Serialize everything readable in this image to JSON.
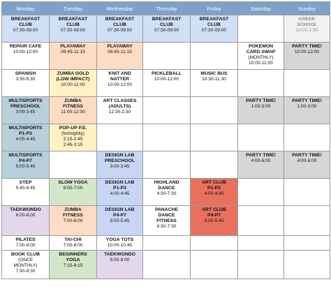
{
  "days": [
    "Monday",
    "Tuesday",
    "Wednesday",
    "Thursday",
    "Friday",
    "Saturday",
    "Sunday"
  ],
  "rows": [
    {
      "cells": [
        {
          "bg": "bg-blue",
          "lines": [
            {
              "b": true,
              "x": "BREAKFAST"
            },
            {
              "b": true,
              "x": "CLUB"
            },
            {
              "b": false,
              "x": "07:30-09:00"
            }
          ]
        },
        {
          "bg": "bg-blue",
          "lines": [
            {
              "b": true,
              "x": "BREAKFAST"
            },
            {
              "b": true,
              "x": "CLUB"
            },
            {
              "b": false,
              "x": "07:30-09:00"
            }
          ]
        },
        {
          "bg": "bg-blue",
          "lines": [
            {
              "b": true,
              "x": "BREAKFAST"
            },
            {
              "b": true,
              "x": "CLUB"
            },
            {
              "b": false,
              "x": "07:30-09:00"
            }
          ]
        },
        {
          "bg": "bg-blue",
          "lines": [
            {
              "b": true,
              "x": "BREAKFAST"
            },
            {
              "b": true,
              "x": "CLUB"
            },
            {
              "b": false,
              "x": "07:30-09:00"
            }
          ]
        },
        {
          "bg": "bg-blue",
          "lines": [
            {
              "b": true,
              "x": "BREAKFAST"
            },
            {
              "b": true,
              "x": "CLUB"
            },
            {
              "b": false,
              "x": "07:30-09:00"
            }
          ]
        },
        {
          "bg": "bg-white",
          "lines": []
        },
        {
          "bg": "bg-pale-grey",
          "muted": true,
          "lines": [
            {
              "b": true,
              "x": "GREEK"
            },
            {
              "b": true,
              "x": "SCHOOL"
            },
            {
              "b": false,
              "x": "10:00-1:30"
            }
          ]
        }
      ]
    },
    {
      "cells": [
        {
          "bg": "bg-white",
          "lines": [
            {
              "b": true,
              "x": "REPAIR CAFE"
            },
            {
              "b": false,
              "x": "10:00-12:00"
            }
          ]
        },
        {
          "bg": "bg-peach",
          "lines": [
            {
              "b": true,
              "x": "PLAYAWAY"
            },
            {
              "b": false,
              "x": "09:45-11:15"
            }
          ]
        },
        {
          "bg": "bg-peach",
          "lines": [
            {
              "b": true,
              "x": "PLAYAWAY"
            },
            {
              "b": false,
              "x": "09:45-11:15"
            }
          ]
        },
        {
          "bg": "bg-white",
          "lines": []
        },
        {
          "bg": "bg-white",
          "lines": []
        },
        {
          "bg": "bg-white",
          "lines": [
            {
              "b": true,
              "x": "POKEMON"
            },
            {
              "b": true,
              "x": "CARD SWAP"
            },
            {
              "b": false,
              "x": "(MONTHLY)"
            },
            {
              "b": false,
              "x": "10:00-11:00"
            }
          ]
        },
        {
          "bg": "bg-grey",
          "lines": [
            {
              "b": true,
              "x": "PARTY TIME!"
            },
            {
              "b": false,
              "x": "10:00-12:00"
            }
          ]
        }
      ]
    },
    {
      "cells": [
        {
          "bg": "bg-white",
          "lines": [
            {
              "b": true,
              "x": "SPANISH"
            },
            {
              "b": false,
              "x": "3:30-5:30"
            }
          ]
        },
        {
          "bg": "bg-yellow",
          "lines": [
            {
              "b": true,
              "x": "ZUMBA GOLD"
            },
            {
              "b": true,
              "x": "(LOW IMPACT)"
            },
            {
              "b": false,
              "x": "10:00-11:00"
            }
          ]
        },
        {
          "bg": "bg-white",
          "lines": [
            {
              "b": true,
              "x": "KNIT AND"
            },
            {
              "b": true,
              "x": "NATTER"
            },
            {
              "b": false,
              "x": "10:00-12:00"
            }
          ]
        },
        {
          "bg": "bg-white",
          "lines": [
            {
              "b": true,
              "x": "PICKLEBALL"
            },
            {
              "b": false,
              "x": "10:00-12:00"
            }
          ]
        },
        {
          "bg": "bg-white",
          "lines": [
            {
              "b": true,
              "x": "MUSIC BUS"
            },
            {
              "b": false,
              "x": "10:30-11:30"
            }
          ]
        },
        {
          "bg": "bg-white",
          "lines": []
        },
        {
          "bg": "bg-white",
          "lines": []
        }
      ]
    },
    {
      "cells": [
        {
          "bg": "bg-slate",
          "lines": [
            {
              "b": true,
              "x": "MULTISPORTS"
            },
            {
              "b": true,
              "x": "PRESCHOOL"
            },
            {
              "b": false,
              "x": "3:00-3:45"
            }
          ]
        },
        {
          "bg": "bg-peach",
          "lines": [
            {
              "b": true,
              "x": "ZUMBA"
            },
            {
              "b": true,
              "x": "FITNESS"
            },
            {
              "b": false,
              "x": "11:00-12:00"
            }
          ]
        },
        {
          "bg": "bg-white",
          "lines": [
            {
              "b": true,
              "x": "ART CLASSES"
            },
            {
              "b": true,
              "x": "(ADULTS)"
            },
            {
              "b": false,
              "x": "12:30-2:30"
            }
          ]
        },
        {
          "bg": "bg-white",
          "lines": []
        },
        {
          "bg": "bg-white",
          "lines": []
        },
        {
          "bg": "bg-grey",
          "lines": [
            {
              "b": true,
              "x": "PARTY TIME!"
            },
            {
              "b": false,
              "x": "1:00-3:00"
            }
          ]
        },
        {
          "bg": "bg-grey",
          "lines": [
            {
              "b": true,
              "x": "PARTY TIME!"
            },
            {
              "b": false,
              "x": "1:00-3:00"
            }
          ]
        }
      ]
    },
    {
      "cells": [
        {
          "bg": "bg-slate",
          "lines": [
            {
              "b": true,
              "x": "MULTISPORTS"
            },
            {
              "b": true,
              "x": "P1-P3"
            },
            {
              "b": false,
              "x": "4:00-4:45"
            }
          ]
        },
        {
          "bg": "bg-yellow",
          "lines": [
            {
              "b": true,
              "x": "POP-UP P.E."
            },
            {
              "b": false,
              "x": "(fortnightly)"
            },
            {
              "b": false,
              "x": "2:15-2:45"
            },
            {
              "b": false,
              "x": "2:45-3:15"
            }
          ]
        },
        {
          "bg": "bg-white",
          "lines": []
        },
        {
          "bg": "bg-white",
          "lines": []
        },
        {
          "bg": "bg-white",
          "lines": []
        },
        {
          "bg": "bg-white",
          "lines": []
        },
        {
          "bg": "bg-white",
          "lines": []
        }
      ]
    },
    {
      "cells": [
        {
          "bg": "bg-slate",
          "lines": [
            {
              "b": true,
              "x": "MULTISPORTS"
            },
            {
              "b": true,
              "x": "P4-P7"
            },
            {
              "b": false,
              "x": "5:00-5:45"
            }
          ]
        },
        {
          "bg": "bg-white",
          "lines": []
        },
        {
          "bg": "bg-periwinkle",
          "lines": [
            {
              "b": true,
              "x": "DESIGN LAB"
            },
            {
              "b": true,
              "x": "PRESCHOOL"
            },
            {
              "b": false,
              "x": "3:00-3:45"
            }
          ]
        },
        {
          "bg": "bg-white",
          "lines": []
        },
        {
          "bg": "bg-white",
          "lines": []
        },
        {
          "bg": "bg-grey",
          "lines": [
            {
              "b": true,
              "x": "PARTY TIME!"
            },
            {
              "b": false,
              "x": "4:00-6:00"
            }
          ]
        },
        {
          "bg": "bg-grey",
          "lines": [
            {
              "b": true,
              "x": "PARTY TIME!"
            },
            {
              "b": false,
              "x": "4:00-6:00"
            }
          ]
        }
      ]
    },
    {
      "cells": [
        {
          "bg": "bg-white",
          "lines": [
            {
              "b": true,
              "x": "STEP"
            },
            {
              "b": false,
              "x": "5:45-6:45"
            }
          ]
        },
        {
          "bg": "bg-green",
          "lines": [
            {
              "b": true,
              "x": "SLOW YOGA"
            },
            {
              "b": false,
              "x": "6:00-7:00"
            }
          ]
        },
        {
          "bg": "bg-periwinkle",
          "lines": [
            {
              "b": true,
              "x": "DESIGN LAB"
            },
            {
              "b": true,
              "x": "P1-P3"
            },
            {
              "b": false,
              "x": "4:00-4:45"
            }
          ]
        },
        {
          "bg": "bg-white",
          "lines": [
            {
              "b": true,
              "x": "HIGHLAND"
            },
            {
              "b": true,
              "x": "DANCE"
            },
            {
              "b": false,
              "x": "4:30-7:30"
            }
          ]
        },
        {
          "bg": "bg-red",
          "lines": [
            {
              "b": true,
              "x": "ART CLUB"
            },
            {
              "b": true,
              "x": "P1-P3"
            },
            {
              "b": false,
              "x": "4:00-4:45"
            }
          ]
        },
        {
          "bg": "bg-white",
          "lines": []
        },
        {
          "bg": "bg-white",
          "lines": []
        }
      ]
    },
    {
      "cells": [
        {
          "bg": "bg-purple",
          "lines": [
            {
              "b": true,
              "x": "TAEKWONDO"
            },
            {
              "b": false,
              "x": "6:00-8:00"
            }
          ]
        },
        {
          "bg": "bg-peach",
          "lines": [
            {
              "b": true,
              "x": "ZUMBA"
            },
            {
              "b": true,
              "x": "FITNESS"
            },
            {
              "b": false,
              "x": "7:00-8:00"
            }
          ]
        },
        {
          "bg": "bg-periwinkle",
          "lines": [
            {
              "b": true,
              "x": "DESIGN LAB"
            },
            {
              "b": true,
              "x": "P4-P7"
            },
            {
              "b": false,
              "x": "5:00-5:45"
            }
          ]
        },
        {
          "bg": "bg-white",
          "lines": [
            {
              "b": true,
              "x": "PANACHE"
            },
            {
              "b": true,
              "x": "DANCE"
            },
            {
              "b": true,
              "x": "FITNESS"
            },
            {
              "b": false,
              "x": "6:30-7:30"
            }
          ]
        },
        {
          "bg": "bg-red",
          "lines": [
            {
              "b": true,
              "x": "ART CLUB"
            },
            {
              "b": true,
              "x": "P4-P7"
            },
            {
              "b": false,
              "x": "5:00-5:45"
            }
          ]
        },
        {
          "bg": "bg-white",
          "lines": []
        },
        {
          "bg": "bg-white",
          "lines": []
        }
      ]
    },
    {
      "cells": [
        {
          "bg": "bg-white",
          "lines": [
            {
              "b": true,
              "x": "PILATES"
            },
            {
              "b": false,
              "x": "7:00-8:00"
            }
          ]
        },
        {
          "bg": "bg-white",
          "lines": [
            {
              "b": true,
              "x": "TAI-CHI"
            },
            {
              "b": false,
              "x": "7:00-8:00"
            }
          ]
        },
        {
          "bg": "bg-white",
          "lines": [
            {
              "b": true,
              "x": "YOGA TOTS"
            },
            {
              "b": false,
              "x": "10:00-10:45"
            }
          ]
        },
        {
          "bg": "bg-white",
          "lines": []
        },
        {
          "bg": "bg-white",
          "lines": []
        },
        {
          "bg": "bg-white",
          "lines": []
        },
        {
          "bg": "bg-white",
          "lines": []
        }
      ]
    },
    {
      "cells": [
        {
          "bg": "bg-white",
          "lines": [
            {
              "b": true,
              "x": "BOOK CLUB"
            },
            {
              "b": false,
              "x": "(ONCE"
            },
            {
              "b": false,
              "x": "MONTHLY)"
            },
            {
              "b": false,
              "x": "7:30-8:30"
            }
          ]
        },
        {
          "bg": "bg-green",
          "lines": [
            {
              "b": true,
              "x": "BEGINNERS"
            },
            {
              "b": true,
              "x": "YOGA"
            },
            {
              "b": false,
              "x": "7:15-8:15"
            }
          ]
        },
        {
          "bg": "bg-purple",
          "lines": [
            {
              "b": true,
              "x": "TAEKWONDO"
            },
            {
              "b": false,
              "x": "5:00-8:00"
            }
          ]
        },
        {
          "bg": "bg-white",
          "lines": []
        },
        {
          "bg": "bg-white",
          "lines": []
        },
        {
          "bg": "bg-white",
          "lines": []
        },
        {
          "bg": "bg-white",
          "lines": []
        }
      ]
    }
  ]
}
